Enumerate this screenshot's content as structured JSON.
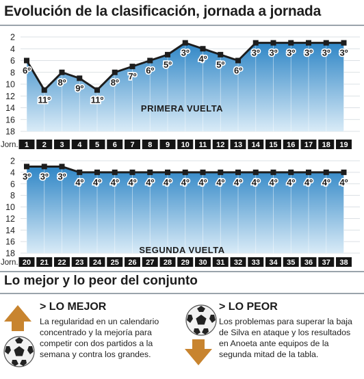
{
  "title": "Evolución de la clasificación, jornada a jornada",
  "chart_data": [
    {
      "type": "area",
      "title": "PRIMERA VUELTA",
      "x_label": "Jorn.",
      "x": [
        1,
        2,
        3,
        4,
        5,
        6,
        7,
        8,
        9,
        10,
        11,
        12,
        13,
        14,
        15,
        16,
        17,
        18,
        19
      ],
      "values": [
        6,
        11,
        8,
        9,
        11,
        8,
        7,
        6,
        5,
        3,
        4,
        5,
        6,
        3,
        3,
        3,
        3,
        3,
        3
      ],
      "point_labels": [
        "6º",
        "11º",
        "8º",
        "9º",
        "11º",
        "8º",
        "7º",
        "6º",
        "5º",
        "3º",
        "4º",
        "5º",
        "6º",
        "3º",
        "3º",
        "3º",
        "3º",
        "3º",
        "3º"
      ],
      "y_ticks": [
        2,
        4,
        6,
        8,
        10,
        12,
        14,
        16,
        18
      ],
      "ylim": [
        2,
        18
      ],
      "y_reversed": true,
      "grid": true
    },
    {
      "type": "area",
      "title": "SEGUNDA VUELTA",
      "x_label": "Jorn.",
      "x": [
        20,
        21,
        22,
        23,
        24,
        25,
        26,
        27,
        28,
        29,
        30,
        31,
        32,
        33,
        34,
        35,
        36,
        37,
        38
      ],
      "values": [
        3,
        3,
        3,
        4,
        4,
        4,
        4,
        4,
        4,
        4,
        4,
        4,
        4,
        4,
        4,
        4,
        4,
        4,
        4
      ],
      "point_labels": [
        "3º",
        "3º",
        "3º",
        "4º",
        "4º",
        "4º",
        "4º",
        "4º",
        "4º",
        "4º",
        "4º",
        "4º",
        "4º",
        "4º",
        "4º",
        "4º",
        "4º",
        "4º",
        "4º"
      ],
      "y_ticks": [
        2,
        4,
        6,
        8,
        10,
        12,
        14,
        16,
        18
      ],
      "ylim": [
        2,
        18
      ],
      "y_reversed": true,
      "grid": true
    }
  ],
  "subtitle": "Lo mejor y lo peor del conjunto",
  "best": {
    "heading": "> LO MEJOR",
    "lines": [
      "La regularidad en un calendario",
      "concentrado y la mejoría para",
      "competir con dos partidos a la",
      "semana y contra los grandes."
    ],
    "arrow_icon": "up-arrow-icon",
    "ball_icon": "soccer-ball-icon"
  },
  "worst": {
    "heading": "> LO PEOR",
    "lines": [
      "Los problemas para superar la baja",
      "de Silva en ataque y los resultados",
      "en Anoeta ante equipos de la",
      "segunda mitad de la tabla."
    ],
    "arrow_icon": "down-arrow-icon",
    "ball_icon": "soccer-ball-icon"
  },
  "colors": {
    "area_top": "#2f86c6",
    "area_bottom": "#d9ebf7",
    "line": "#1d1d1d",
    "jornada_box": "#151515",
    "arrow": "#c8842f"
  }
}
